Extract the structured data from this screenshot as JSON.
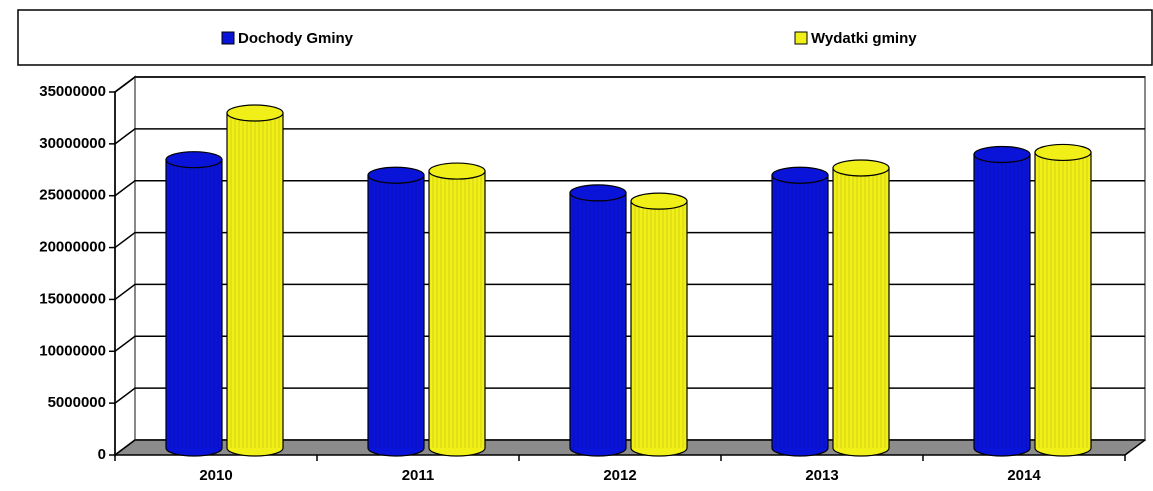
{
  "chart_data": {
    "type": "bar3d",
    "categories": [
      "2010",
      "2011",
      "2012",
      "2013",
      "2014"
    ],
    "series": [
      {
        "name": "Dochody Gminy",
        "color": "#0a14d8",
        "values": [
          27800000,
          26300000,
          24600000,
          26300000,
          28300000
        ]
      },
      {
        "name": "Wydatki gminy",
        "color": "#f0f018",
        "values": [
          32300000,
          26700000,
          23800000,
          27000000,
          28500000
        ]
      }
    ],
    "ylim": [
      0,
      35000000
    ],
    "yticks": [
      0,
      5000000,
      10000000,
      15000000,
      20000000,
      25000000,
      30000000,
      35000000
    ],
    "grid": true,
    "legend": "top"
  }
}
